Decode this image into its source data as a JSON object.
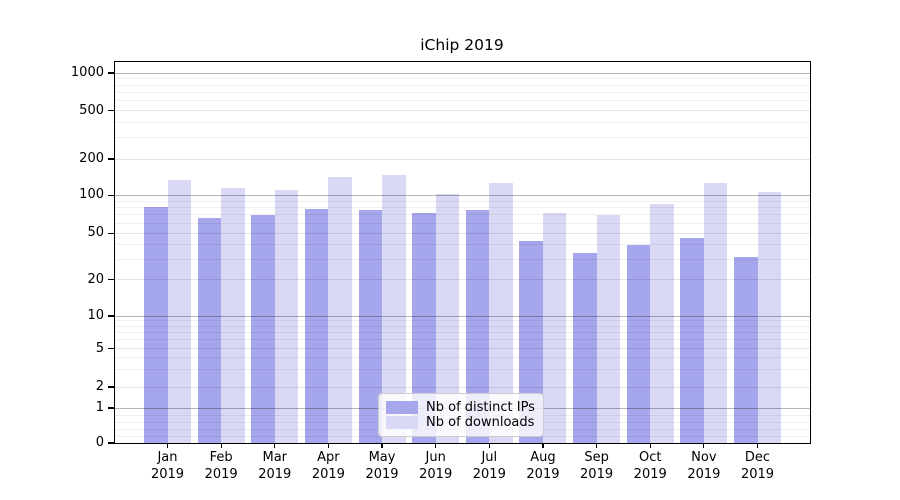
{
  "chart_data": {
    "type": "bar",
    "title": "iChip 2019",
    "categories": [
      "Jan",
      "Feb",
      "Mar",
      "Apr",
      "May",
      "Jun",
      "Jul",
      "Aug",
      "Sep",
      "Oct",
      "Nov",
      "Dec"
    ],
    "x_sublabel_year": "2019",
    "series": [
      {
        "name": "Nb of distinct IPs",
        "color": "#a6a6ec",
        "values": [
          81,
          66,
          70,
          78,
          77,
          72,
          77,
          43,
          34,
          40,
          46,
          31
        ]
      },
      {
        "name": "Nb of downloads",
        "color": "#d9d9f6",
        "values": [
          134,
          116,
          111,
          143,
          148,
          102,
          127,
          72,
          70,
          86,
          126,
          107
        ]
      }
    ],
    "y_scale": "symlog",
    "y_ticks": [
      0,
      1,
      2,
      5,
      10,
      20,
      50,
      100,
      200,
      500,
      1000
    ],
    "ylim": [
      0,
      1250
    ],
    "grid": true,
    "legend_position": "lower center"
  }
}
